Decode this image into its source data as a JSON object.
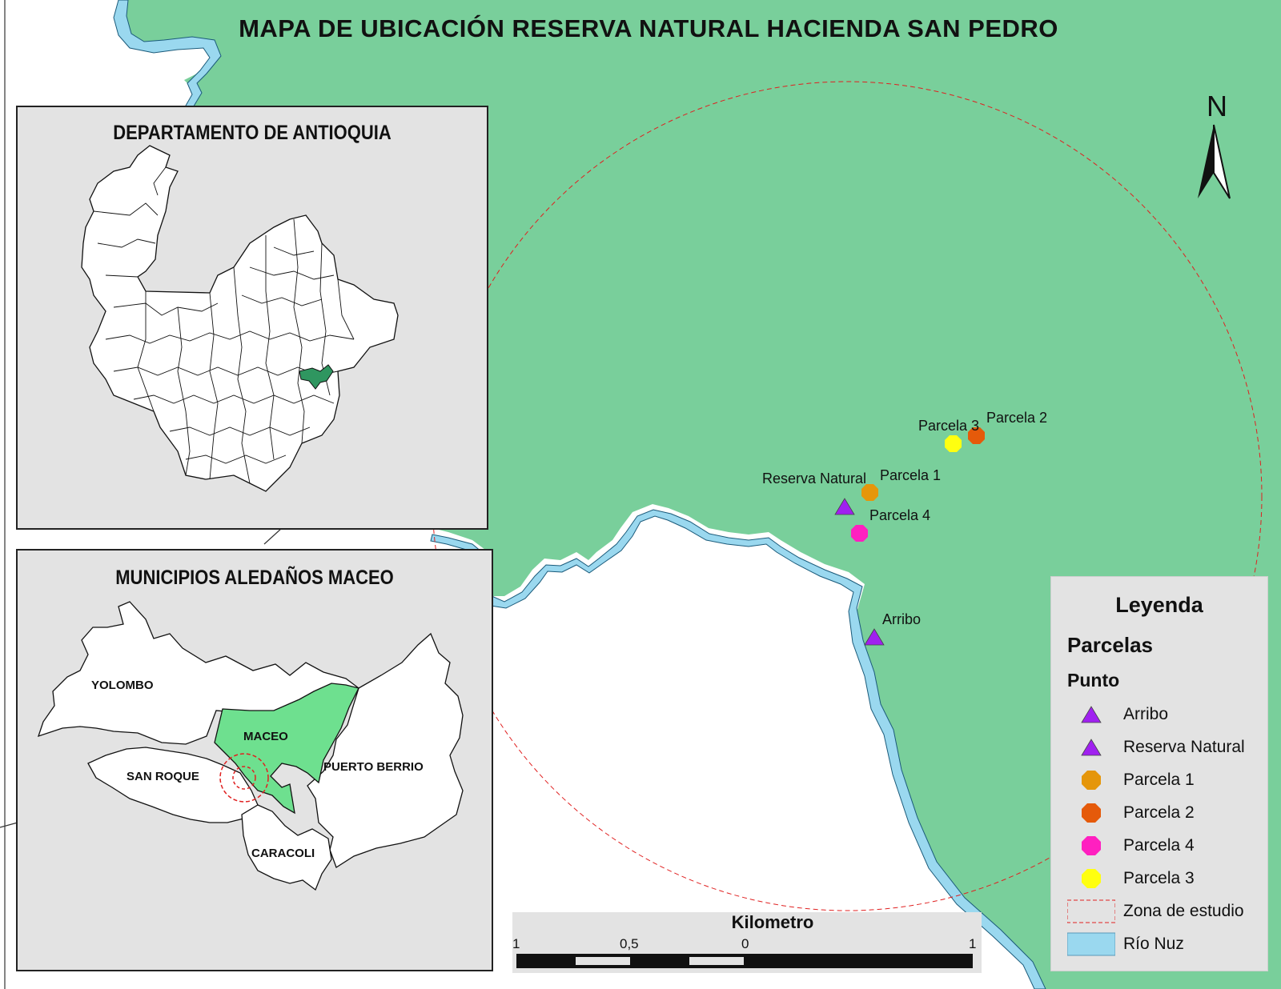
{
  "title": "MAPA DE UBICACIÓN RESERVA NATURAL HACIENDA SAN PEDRO",
  "colors": {
    "land_green": "#79cf9b",
    "river_blue": "#9ad8ef",
    "inset_bg": "#e3e3e3",
    "maceo_highlight": "#2f9660",
    "maceo_light": "#6ee08f",
    "study_zone_red": "#e02020",
    "arribo_purple": "#a020f0",
    "parcela1_orange": "#e5960a",
    "parcela2_orange": "#e55a0a",
    "parcela3_yellow": "#ffff10",
    "parcela4_magenta": "#ff20c0"
  },
  "inset_antioquia": {
    "title": "DEPARTAMENTO DE ANTIOQUIA"
  },
  "inset_municipios": {
    "title": "MUNICIPIOS ALEDAÑOS MACEO",
    "labels": {
      "yolombo": "YOLOMBO",
      "maceo": "MACEO",
      "san_roque": "SAN ROQUE",
      "puerto_berrio": "PUERTO BERRIO",
      "caracoli": "CARACOLI"
    }
  },
  "points": {
    "reserva_natural": "Reserva Natural",
    "parcela_1": "Parcela 1",
    "parcela_2": "Parcela 2",
    "parcela_3": "Parcela 3",
    "parcela_4": "Parcela 4",
    "arribo": "Arribo"
  },
  "north_arrow": "N",
  "scale": {
    "title": "Kilometro",
    "ticks": [
      "1",
      "0,5",
      "0",
      "1"
    ]
  },
  "legend": {
    "title": "Leyenda",
    "group": "Parcelas",
    "subgroup": "Punto",
    "items": [
      {
        "label": "Arribo",
        "symbol": "triangle",
        "color": "#a020f0"
      },
      {
        "label": "Reserva Natural",
        "symbol": "triangle",
        "color": "#a020f0"
      },
      {
        "label": "Parcela 1",
        "symbol": "octagon",
        "color": "#e5960a"
      },
      {
        "label": "Parcela 2",
        "symbol": "octagon",
        "color": "#e55a0a"
      },
      {
        "label": "Parcela 4",
        "symbol": "octagon",
        "color": "#ff20c0"
      },
      {
        "label": "Parcela 3",
        "symbol": "octagon",
        "color": "#ffff10"
      },
      {
        "label": "Zona de estudio",
        "symbol": "dashed-rect",
        "color": "#e02020"
      },
      {
        "label": "Río Nuz",
        "symbol": "rect",
        "color": "#9ad8ef"
      }
    ]
  }
}
